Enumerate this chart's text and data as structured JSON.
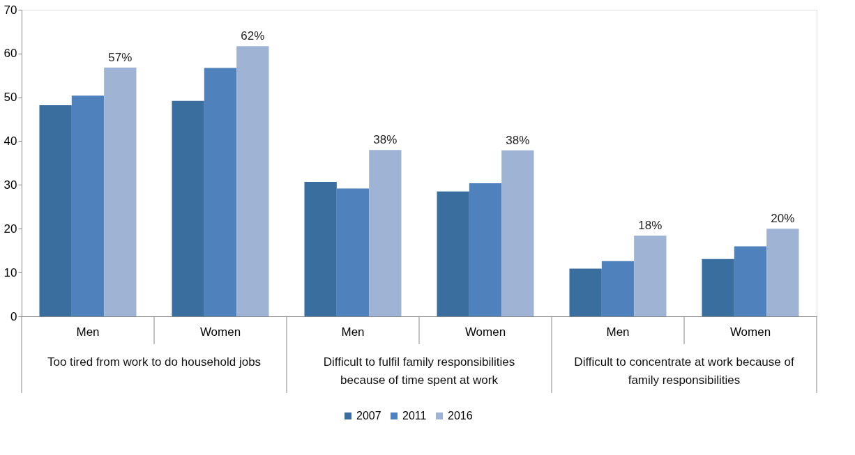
{
  "chart_data": {
    "type": "bar",
    "categories": [
      "Men",
      "Women",
      "Men",
      "Women",
      "Men",
      "Women"
    ],
    "annotations": [
      "Too tired from work to do household jobs",
      "Difficult to fulfil family responsibilities because of time spent at work",
      "Difficult to concentrate at work because of family responsibilities"
    ],
    "series": [
      {
        "name": "2007",
        "color": "#3a6e9f",
        "values": [
          48.2,
          49.2,
          30.7,
          28.5,
          10.9,
          13.1
        ]
      },
      {
        "name": "2011",
        "color": "#4f81bd",
        "values": [
          50.4,
          56.7,
          29.2,
          30.4,
          12.6,
          16.0
        ]
      },
      {
        "name": "2016",
        "color": "#9fb4d4",
        "values": [
          56.8,
          61.7,
          38.0,
          37.9,
          18.4,
          20.0
        ],
        "value_labels": [
          "57%",
          "62%",
          "38%",
          "38%",
          "18%",
          "20%"
        ]
      }
    ],
    "ylim": [
      0,
      70
    ],
    "yticks": [
      0,
      10,
      20,
      30,
      40,
      50,
      60,
      70
    ],
    "grid": false,
    "legend": "bottom"
  }
}
